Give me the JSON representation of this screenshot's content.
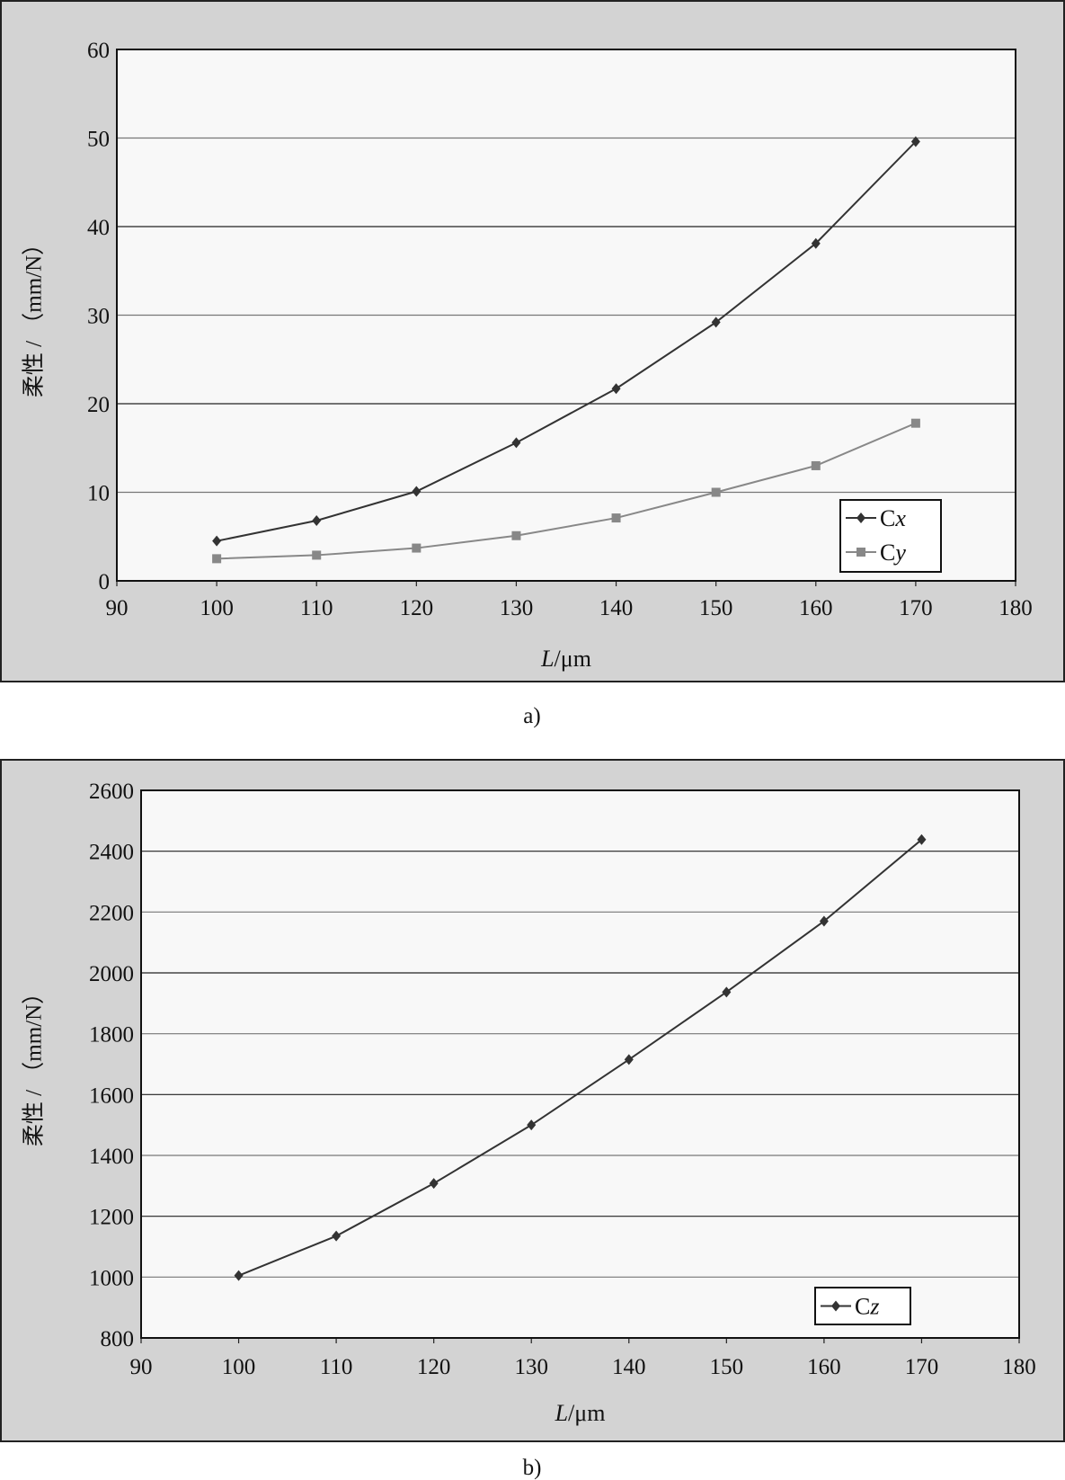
{
  "chart_data": [
    {
      "type": "line",
      "panel_label": "a)",
      "xlabel_italic": "L",
      "xlabel_unit": "/μm",
      "ylabel": "柔性 / （mm/N）",
      "xlim": [
        90,
        180
      ],
      "ylim": [
        0,
        60
      ],
      "x_ticks": [
        90,
        100,
        110,
        120,
        130,
        140,
        150,
        160,
        170,
        180
      ],
      "y_ticks": [
        0,
        10,
        20,
        30,
        40,
        50,
        60
      ],
      "grid": true,
      "legend_position": "bottom-right",
      "x": [
        100,
        110,
        120,
        130,
        140,
        150,
        160,
        170
      ],
      "series": [
        {
          "name": "Cx",
          "name_main": "C",
          "name_sub": "x",
          "marker": "diamond",
          "color": "#333333",
          "values": [
            4.5,
            6.8,
            10.1,
            15.6,
            21.7,
            29.2,
            38.1,
            49.6
          ]
        },
        {
          "name": "Cy",
          "name_main": "C",
          "name_sub": "y",
          "marker": "square",
          "color": "#888888",
          "values": [
            2.5,
            2.9,
            3.7,
            5.1,
            7.1,
            10.0,
            13.0,
            17.8
          ]
        }
      ]
    },
    {
      "type": "line",
      "panel_label": "b)",
      "xlabel_italic": "L",
      "xlabel_unit": "/μm",
      "ylabel": "柔性 / （mm/N）",
      "xlim": [
        90,
        180
      ],
      "ylim": [
        800,
        2600
      ],
      "x_ticks": [
        90,
        100,
        110,
        120,
        130,
        140,
        150,
        160,
        170,
        180
      ],
      "y_ticks": [
        800,
        1000,
        1200,
        1400,
        1600,
        1800,
        2000,
        2200,
        2400,
        2600
      ],
      "grid": true,
      "legend_position": "bottom-right",
      "x": [
        100,
        110,
        120,
        130,
        140,
        150,
        160,
        170
      ],
      "series": [
        {
          "name": "Cz",
          "name_main": "C",
          "name_sub": "z",
          "marker": "diamond",
          "color": "#333333",
          "values": [
            1005,
            1135,
            1308,
            1500,
            1715,
            1937,
            2170,
            2438
          ]
        }
      ]
    }
  ],
  "colors": {
    "frame_bg": "#d3d3d3",
    "plot_bg": "#f8f8f8",
    "grid": "#555555"
  }
}
